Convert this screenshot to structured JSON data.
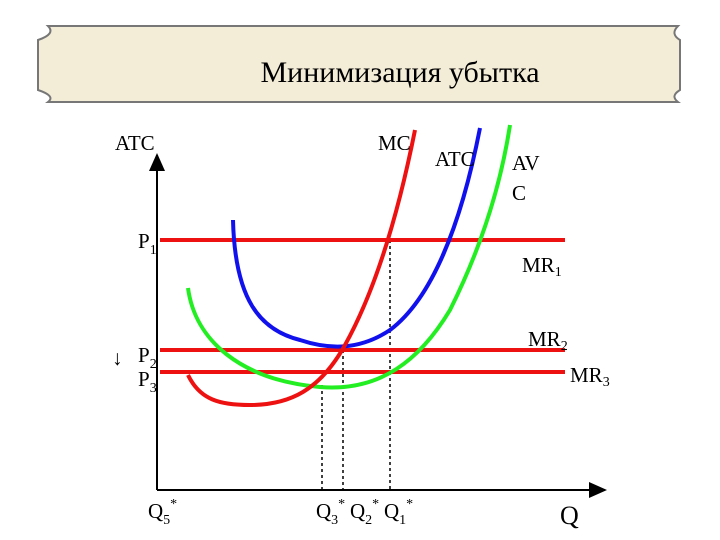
{
  "header": {
    "title": "Минимизация убытка"
  },
  "axes": {
    "y_label": "ATC",
    "x_label": "Q"
  },
  "curves": {
    "mc": "MC",
    "atc": "ATC",
    "avc_line1": "AV",
    "avc_line2": "C"
  },
  "prices": [
    {
      "base": "P",
      "sub": "1"
    },
    {
      "base": "P",
      "sub": "2"
    },
    {
      "base": "P",
      "sub": "3"
    }
  ],
  "price_arrow": "↓",
  "revenue_lines": [
    {
      "base": "MR",
      "sub": "1"
    },
    {
      "base": "MR",
      "sub": "2"
    },
    {
      "base": "MR",
      "sub": "3"
    }
  ],
  "quantities": [
    {
      "base": "Q",
      "sub": "5",
      "sup": "*"
    },
    {
      "base": "Q",
      "sub": "3",
      "sup": "*"
    },
    {
      "base": "Q",
      "sub": "2",
      "sup": "*"
    },
    {
      "base": "Q",
      "sub": "1",
      "sup": "*"
    }
  ]
}
